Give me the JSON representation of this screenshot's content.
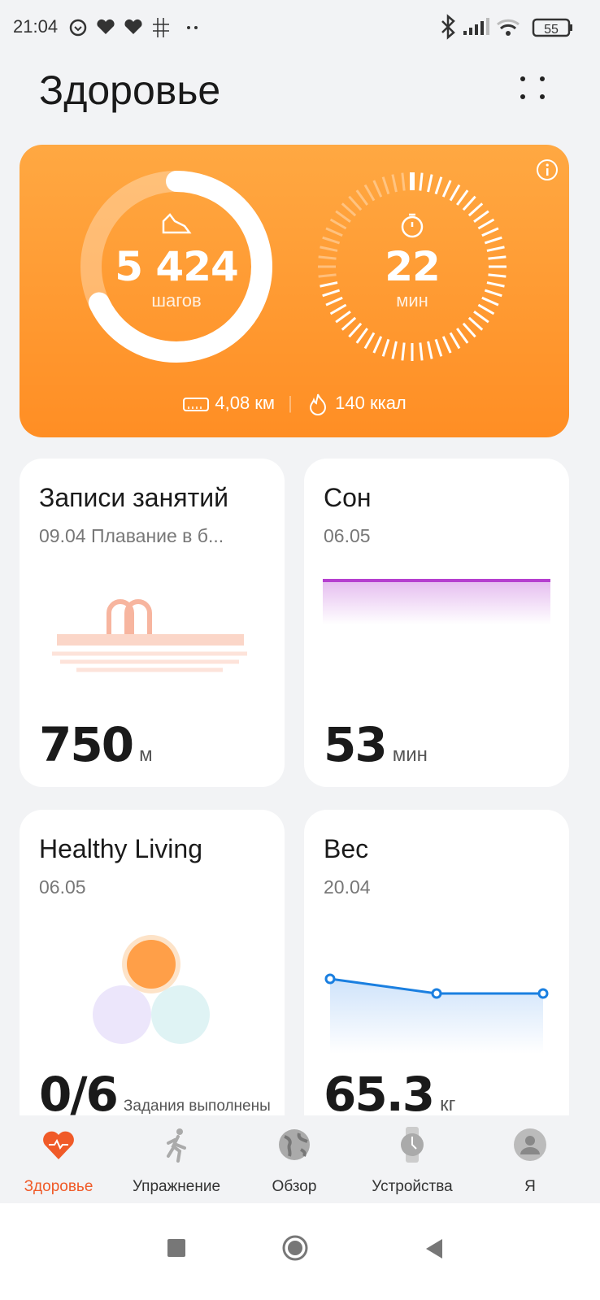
{
  "status_bar": {
    "time": "21:04",
    "battery": "55",
    "icons": [
      "alarm-icon",
      "heart-rate-icon",
      "heart-rate-icon",
      "grid-icon",
      "more-dots-icon",
      "bluetooth-icon",
      "signal-icon",
      "wifi-icon",
      "battery-icon"
    ]
  },
  "header": {
    "title": "Здоровье"
  },
  "activity": {
    "steps": "5 424",
    "steps_unit": "шагов",
    "steps_progress": 0.68,
    "minutes": "22",
    "minutes_unit": "мин",
    "minutes_progress": 0.73,
    "distance": "4,08 км",
    "calories": "140 ккал",
    "accent": "#ff9a2e"
  },
  "cards": {
    "workouts": {
      "title": "Записи занятий",
      "subtitle": "09.04 Плавание в б...",
      "value": "750",
      "unit": "м"
    },
    "sleep": {
      "title": "Сон",
      "subtitle": "06.05",
      "value": "53",
      "unit": "мин",
      "color": "#b53fcf"
    },
    "healthy": {
      "title": "Healthy Living",
      "subtitle": "06.05",
      "value": "0/6",
      "unit": "Задания выполнены"
    },
    "weight": {
      "title": "Вес",
      "subtitle": "20.04",
      "value": "65.3",
      "unit": "кг",
      "chart_values": [
        65.9,
        65.3,
        65.3
      ],
      "color": "#1a7fe0"
    }
  },
  "nav": {
    "items": [
      {
        "label": "Здоровье",
        "active": true
      },
      {
        "label": "Упражнение"
      },
      {
        "label": "Обзор"
      },
      {
        "label": "Устройства"
      },
      {
        "label": "Я"
      }
    ],
    "active_color": "#f05a28"
  }
}
